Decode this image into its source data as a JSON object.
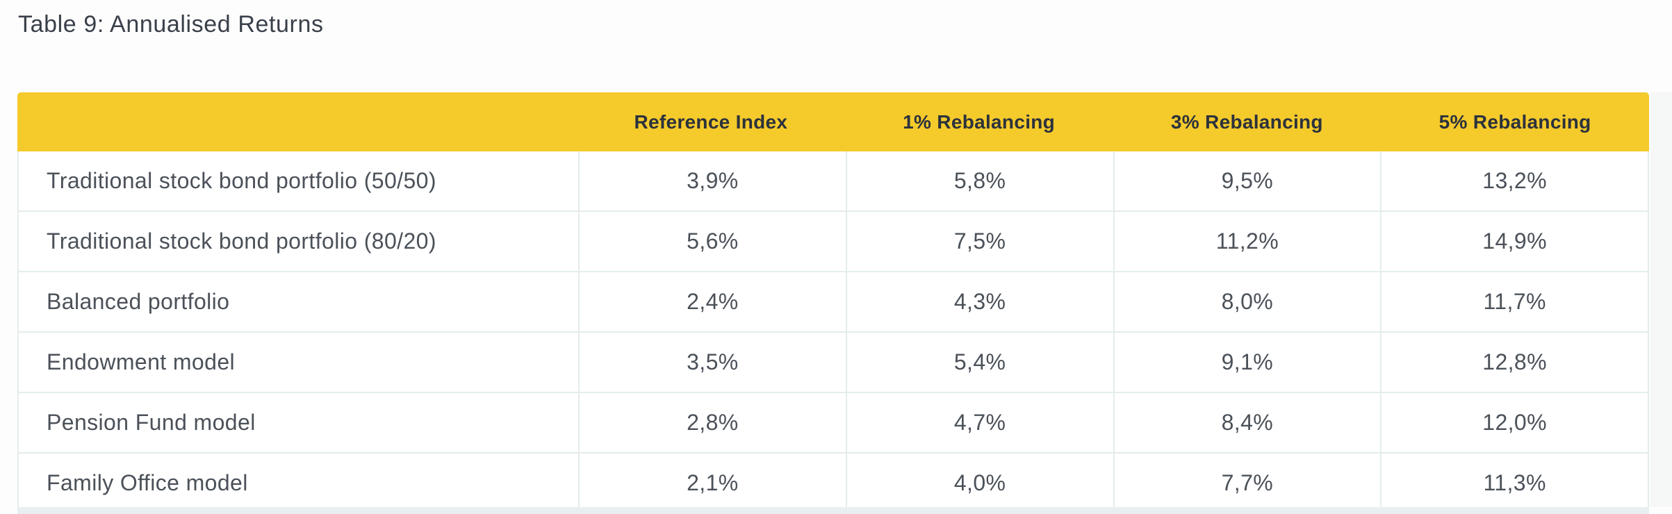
{
  "page": {
    "title": "Table 9: Annualised Returns"
  },
  "table": {
    "columns": [
      "",
      "Reference Index",
      "1% Rebalancing",
      "3% Rebalancing",
      "5% Rebalancing"
    ],
    "rows": [
      {
        "label": "Traditional stock bond portfolio (50/50)",
        "values": [
          "3,9%",
          "5,8%",
          "9,5%",
          "13,2%"
        ]
      },
      {
        "label": "Traditional stock bond portfolio (80/20)",
        "values": [
          "5,6%",
          "7,5%",
          "11,2%",
          "14,9%"
        ]
      },
      {
        "label": "Balanced portfolio",
        "values": [
          "2,4%",
          "4,3%",
          "8,0%",
          "11,7%"
        ]
      },
      {
        "label": "Endowment model",
        "values": [
          "3,5%",
          "5,4%",
          "9,1%",
          "12,8%"
        ]
      },
      {
        "label": "Pension Fund model",
        "values": [
          "2,8%",
          "4,7%",
          "8,4%",
          "12,0%"
        ]
      },
      {
        "label": "Family Office model",
        "values": [
          "2,1%",
          "4,0%",
          "7,7%",
          "11,3%"
        ]
      }
    ]
  },
  "chart_data": {
    "type": "table",
    "title": "Table 9: Annualised Returns",
    "categories": [
      "Reference Index",
      "1% Rebalancing",
      "3% Rebalancing",
      "5% Rebalancing"
    ],
    "series": [
      {
        "name": "Traditional stock bond portfolio (50/50)",
        "values": [
          3.9,
          5.8,
          9.5,
          13.2
        ]
      },
      {
        "name": "Traditional stock bond portfolio (80/20)",
        "values": [
          5.6,
          7.5,
          11.2,
          14.9
        ]
      },
      {
        "name": "Balanced portfolio",
        "values": [
          2.4,
          4.3,
          8.0,
          11.7
        ]
      },
      {
        "name": "Endowment model",
        "values": [
          3.5,
          5.4,
          9.1,
          12.8
        ]
      },
      {
        "name": "Pension Fund model",
        "values": [
          2.8,
          4.7,
          8.4,
          12.0
        ]
      },
      {
        "name": "Family Office model",
        "values": [
          2.1,
          4.0,
          7.7,
          11.3
        ]
      }
    ],
    "value_unit": "percent (comma decimal separator)"
  },
  "colors": {
    "header_background": "#f5ca2b",
    "header_text": "#2c323c",
    "body_text": "#4b5159",
    "title_text": "#3a404a",
    "cell_border": "#e3edec",
    "page_background": "#fdfdfd",
    "bottom_strip": "#e9eff0"
  }
}
